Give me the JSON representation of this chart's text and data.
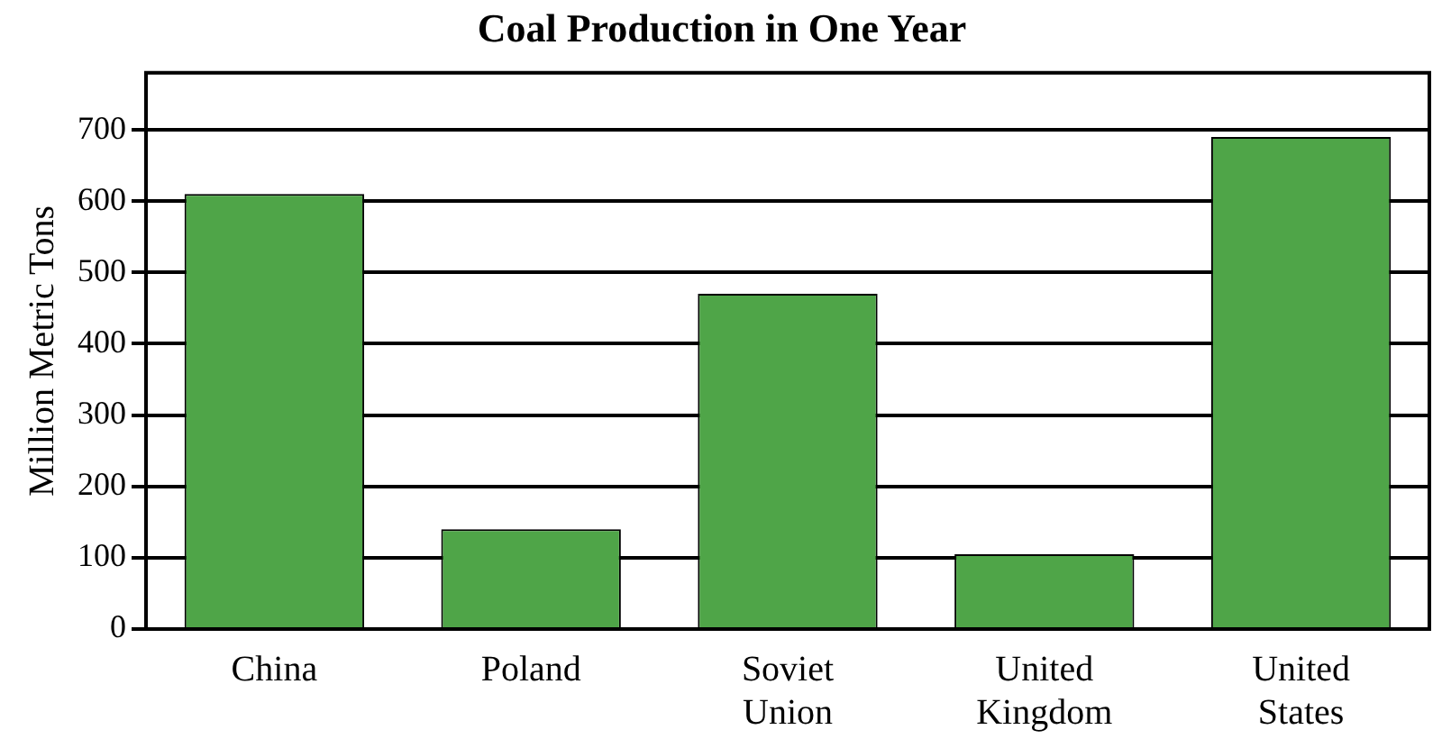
{
  "chart_data": {
    "type": "bar",
    "title": "Coal Production in One Year",
    "ylabel": "Million Metric Tons",
    "categories": [
      "China",
      "Poland",
      "Soviet Union",
      "United Kingdom",
      "United States"
    ],
    "values": [
      610,
      140,
      470,
      105,
      690
    ],
    "color": "#4fa548",
    "ylim": [
      0,
      780
    ],
    "yticks": [
      0,
      100,
      200,
      300,
      400,
      500,
      600,
      700
    ],
    "grid": "y",
    "legend": false
  }
}
